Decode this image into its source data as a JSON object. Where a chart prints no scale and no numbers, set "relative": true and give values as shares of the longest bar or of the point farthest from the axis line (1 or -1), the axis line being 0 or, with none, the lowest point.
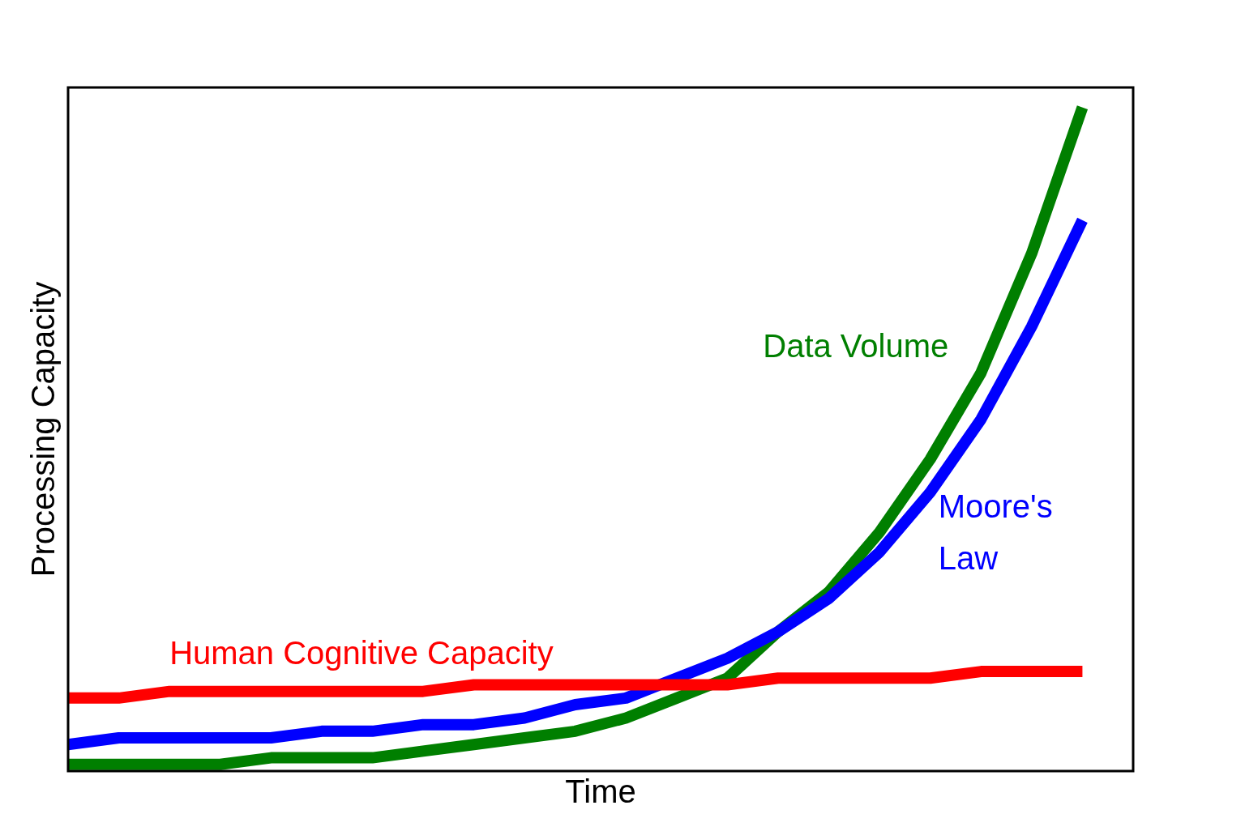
{
  "chart_data": {
    "type": "line",
    "relative": true,
    "xlabel": "Time",
    "ylabel": "Processing Capacity",
    "grid": false,
    "legend": false,
    "marker": "none",
    "line_style": "solid",
    "categories": [
      null,
      null,
      null,
      null,
      null,
      null,
      null,
      null,
      null,
      null,
      null,
      null,
      null,
      null,
      null,
      null,
      null,
      null,
      null,
      null,
      null,
      null
    ],
    "series": [
      {
        "name": "Human Cognitive Capacity",
        "color": "#ff0000",
        "values": [
          0.11,
          0.11,
          0.12,
          0.12,
          0.12,
          0.12,
          0.12,
          0.12,
          0.13,
          0.13,
          0.13,
          0.13,
          0.13,
          0.13,
          0.14,
          0.14,
          0.14,
          0.14,
          0.15,
          0.15,
          0.15,
          null
        ]
      },
      {
        "name": "Moore's Law",
        "color": "#0000ff",
        "values": [
          0.04,
          0.05,
          0.05,
          0.05,
          0.05,
          0.06,
          0.06,
          0.07,
          0.07,
          0.08,
          0.1,
          0.11,
          0.14,
          0.17,
          0.21,
          0.26,
          0.33,
          0.42,
          0.53,
          0.67,
          0.83,
          null
        ]
      },
      {
        "name": "Data Volume",
        "color": "#007f00",
        "values": [
          0.01,
          0.01,
          0.01,
          0.01,
          0.02,
          0.02,
          0.02,
          0.03,
          0.04,
          0.05,
          0.06,
          0.08,
          0.11,
          0.14,
          0.21,
          0.27,
          0.36,
          0.47,
          0.6,
          0.78,
          1,
          null
        ]
      }
    ]
  }
}
